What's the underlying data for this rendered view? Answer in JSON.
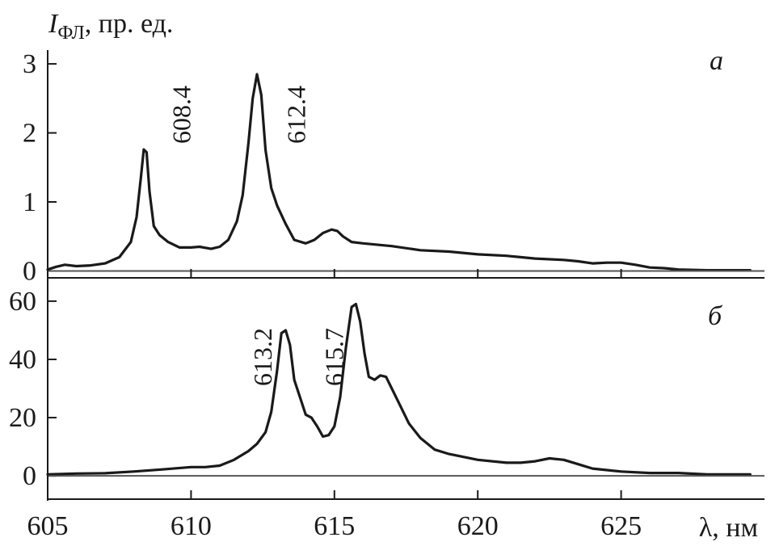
{
  "chart_data": [
    {
      "panel": "а",
      "type": "line",
      "ylabel_main": "I",
      "ylabel_sub": "ФЛ",
      "ylabel_rest": ", пр. ед.",
      "xlim": [
        605,
        630
      ],
      "ylim": [
        -0.1,
        3.2
      ],
      "yticks": [
        0,
        1,
        2,
        3
      ],
      "grid": false,
      "annotations": [
        {
          "text": "608.4",
          "x": 608.4,
          "y": 1.85
        },
        {
          "text": "612.4",
          "x": 612.4,
          "y": 2.85
        }
      ],
      "series": [
        {
          "color": "#1a1a1a",
          "x": [
            605,
            605.3,
            605.6,
            606,
            606.5,
            607,
            607.5,
            607.9,
            608.1,
            608.25,
            608.35,
            608.45,
            608.55,
            608.7,
            608.9,
            609.2,
            609.6,
            610,
            610.3,
            610.7,
            611,
            611.3,
            611.6,
            611.8,
            612,
            612.15,
            612.3,
            612.45,
            612.6,
            612.8,
            613,
            613.3,
            613.6,
            614,
            614.3,
            614.6,
            614.9,
            615.1,
            615.3,
            615.6,
            616,
            617,
            618,
            619,
            620,
            621,
            622,
            623,
            623.5,
            624,
            624.5,
            625,
            625.5,
            626,
            626.5,
            627,
            628,
            629,
            629.5
          ],
          "y": [
            0.02,
            0.06,
            0.09,
            0.07,
            0.08,
            0.11,
            0.2,
            0.42,
            0.78,
            1.35,
            1.76,
            1.72,
            1.15,
            0.65,
            0.52,
            0.42,
            0.34,
            0.34,
            0.35,
            0.32,
            0.35,
            0.45,
            0.72,
            1.1,
            1.85,
            2.5,
            2.85,
            2.55,
            1.75,
            1.2,
            0.95,
            0.68,
            0.45,
            0.4,
            0.45,
            0.55,
            0.6,
            0.58,
            0.5,
            0.42,
            0.4,
            0.36,
            0.3,
            0.28,
            0.24,
            0.22,
            0.18,
            0.16,
            0.14,
            0.11,
            0.12,
            0.12,
            0.09,
            0.05,
            0.04,
            0.02,
            0.01,
            0.01,
            0.01
          ]
        }
      ]
    },
    {
      "panel": "б",
      "type": "line",
      "xlabel": "λ, нм",
      "xlim": [
        605,
        630
      ],
      "ylim": [
        -8,
        68
      ],
      "xticks": [
        605,
        610,
        615,
        620,
        625
      ],
      "yticks": [
        0,
        20,
        40,
        60
      ],
      "grid": false,
      "annotations": [
        {
          "text": "613.2",
          "x": 613.2,
          "y": 50
        },
        {
          "text": "615.7",
          "x": 615.7,
          "y": 59
        }
      ],
      "series": [
        {
          "color": "#1a1a1a",
          "x": [
            605,
            606,
            607,
            608,
            609,
            610,
            610.5,
            611,
            611.5,
            612,
            612.3,
            612.6,
            612.8,
            613,
            613.15,
            613.3,
            613.45,
            613.6,
            613.8,
            614,
            614.2,
            614.4,
            614.6,
            614.8,
            615,
            615.2,
            615.4,
            615.6,
            615.75,
            615.9,
            616.05,
            616.2,
            616.4,
            616.6,
            616.8,
            617,
            617.3,
            617.6,
            618,
            618.5,
            619,
            620,
            621,
            621.5,
            622,
            622.5,
            623,
            623.5,
            624,
            625,
            626,
            627,
            628,
            629,
            629.5
          ],
          "y": [
            0.5,
            0.8,
            0.9,
            1.5,
            2.2,
            3,
            3,
            3.5,
            5.5,
            8.5,
            11,
            15,
            22,
            36,
            49,
            50,
            45,
            33,
            27,
            21,
            20,
            17,
            13.5,
            14,
            17,
            27,
            44,
            58,
            59,
            53,
            42,
            34,
            33,
            34.5,
            34,
            30,
            24,
            18,
            13,
            9,
            7.5,
            5.5,
            4.5,
            4.5,
            5,
            6,
            5.5,
            4,
            2.5,
            1.5,
            1,
            1,
            0.5,
            0.5,
            0.5
          ]
        }
      ]
    }
  ]
}
